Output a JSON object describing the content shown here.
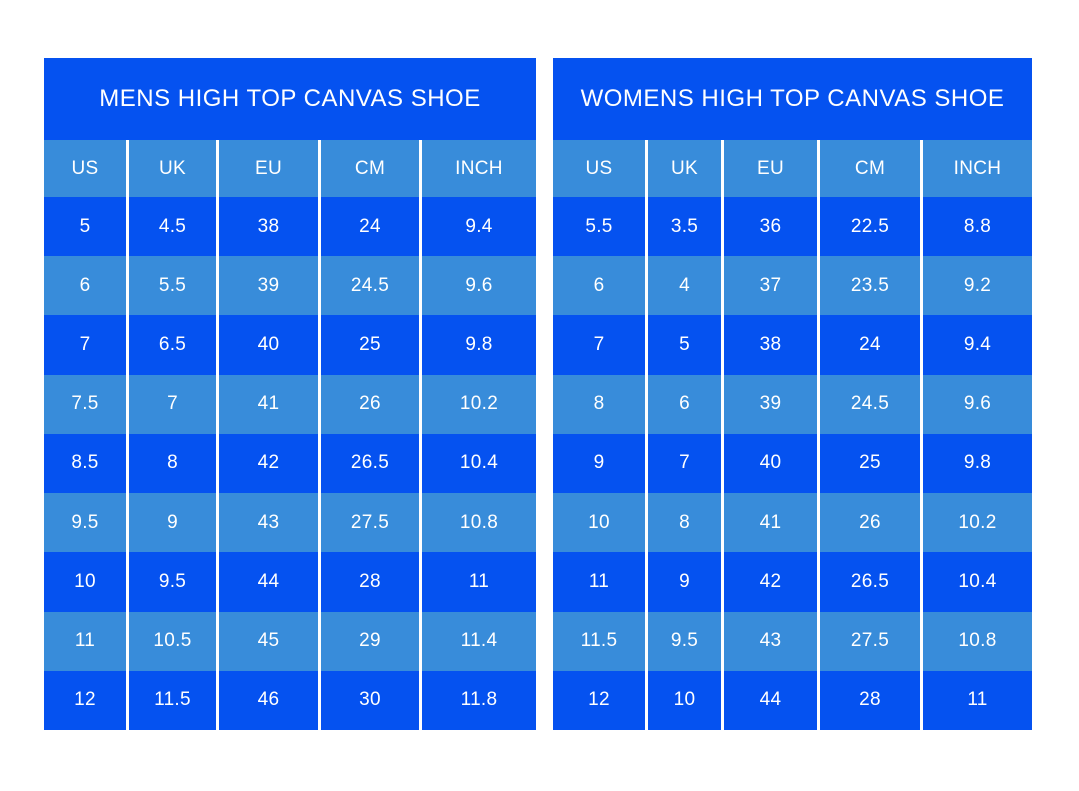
{
  "colors": {
    "dark_blue": "#0552f0",
    "light_blue": "#388cda",
    "text": "#ffffff",
    "background": "#ffffff",
    "separator": "#ffffff"
  },
  "chart_data": [
    {
      "type": "table",
      "title": "MENS HIGH TOP CANVAS SHOE",
      "columns": [
        "US",
        "UK",
        "EU",
        "CM",
        "INCH"
      ],
      "rows": [
        [
          "5",
          "4.5",
          "38",
          "24",
          "9.4"
        ],
        [
          "6",
          "5.5",
          "39",
          "24.5",
          "9.6"
        ],
        [
          "7",
          "6.5",
          "40",
          "25",
          "9.8"
        ],
        [
          "7.5",
          "7",
          "41",
          "26",
          "10.2"
        ],
        [
          "8.5",
          "8",
          "42",
          "26.5",
          "10.4"
        ],
        [
          "9.5",
          "9",
          "43",
          "27.5",
          "10.8"
        ],
        [
          "10",
          "9.5",
          "44",
          "28",
          "11"
        ],
        [
          "11",
          "10.5",
          "45",
          "29",
          "11.4"
        ],
        [
          "12",
          "11.5",
          "46",
          "30",
          "11.8"
        ]
      ],
      "layout_hints": {
        "row_stripe_pattern": "alternating dark/light starting dark",
        "header_background": "light_blue",
        "title_background": "dark_blue"
      }
    },
    {
      "type": "table",
      "title": "WOMENS HIGH TOP CANVAS SHOE",
      "columns": [
        "US",
        "UK",
        "EU",
        "CM",
        "INCH"
      ],
      "rows": [
        [
          "5.5",
          "3.5",
          "36",
          "22.5",
          "8.8"
        ],
        [
          "6",
          "4",
          "37",
          "23.5",
          "9.2"
        ],
        [
          "7",
          "5",
          "38",
          "24",
          "9.4"
        ],
        [
          "8",
          "6",
          "39",
          "24.5",
          "9.6"
        ],
        [
          "9",
          "7",
          "40",
          "25",
          "9.8"
        ],
        [
          "10",
          "8",
          "41",
          "26",
          "10.2"
        ],
        [
          "11",
          "9",
          "42",
          "26.5",
          "10.4"
        ],
        [
          "11.5",
          "9.5",
          "43",
          "27.5",
          "10.8"
        ],
        [
          "12",
          "10",
          "44",
          "28",
          "11"
        ]
      ],
      "layout_hints": {
        "row_stripe_pattern": "alternating dark/light starting dark",
        "header_background": "light_blue",
        "title_background": "dark_blue"
      }
    }
  ]
}
